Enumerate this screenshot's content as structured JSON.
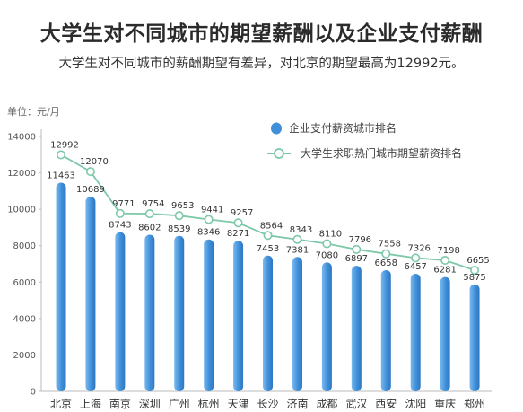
{
  "title": "大学生对不同城市的期望薪酬以及企业支付薪酬",
  "subtitle": "大学生对不同城市的薪酬期望有差异，对北京的期望最高为12992元。",
  "colors": {
    "bar": "#3f8fd9",
    "bar_light": "#7ab8ee",
    "line": "#7cc8a8",
    "marker_fill": "#ffffff"
  },
  "chart_data": {
    "type": "bar",
    "unit_label": "单位：元/月",
    "categories": [
      "北京",
      "上海",
      "南京",
      "深圳",
      "广州",
      "杭州",
      "天津",
      "长沙",
      "济南",
      "成都",
      "武汉",
      "西安",
      "沈阳",
      "重庆",
      "郑州"
    ],
    "series": [
      {
        "name": "企业支付薪资城市排名",
        "type": "bar",
        "values": [
          11463,
          10689,
          8743,
          8602,
          8539,
          8346,
          8271,
          7453,
          7381,
          7080,
          6897,
          6658,
          6457,
          6281,
          5875
        ]
      },
      {
        "name": "大学生求职热门城市期望薪资排名",
        "type": "line",
        "values": [
          12992,
          12070,
          9771,
          9754,
          9653,
          9441,
          9257,
          8564,
          8343,
          8110,
          7796,
          7558,
          7326,
          7198,
          6655
        ]
      }
    ],
    "ylim": [
      0,
      14000
    ],
    "yticks": [
      0,
      2000,
      4000,
      6000,
      8000,
      10000,
      12000,
      14000
    ],
    "legend_position": "top-right",
    "grid": false
  }
}
